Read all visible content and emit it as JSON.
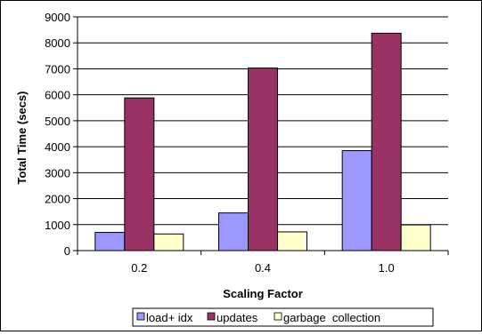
{
  "chart_data": {
    "type": "bar",
    "title": "",
    "xlabel": "Scaling Factor",
    "ylabel": "Total Time (secs)",
    "categories": [
      "0.2",
      "0.4",
      "1.0"
    ],
    "ylim": [
      0,
      9000
    ],
    "yticks": [
      "0",
      "1000",
      "2000",
      "3000",
      "4000",
      "5000",
      "6000",
      "7000",
      "8000",
      "9000"
    ],
    "grid": "horizontal",
    "legend_position": "bottom",
    "series": [
      {
        "name": "load+ idx",
        "color": "#9999ff",
        "values": [
          700,
          1450,
          3850
        ]
      },
      {
        "name": "updates",
        "color": "#993366",
        "values": [
          5880,
          7030,
          8370
        ]
      },
      {
        "name": "garbage  collection",
        "color": "#ffffcc",
        "values": [
          640,
          720,
          990
        ]
      }
    ]
  }
}
